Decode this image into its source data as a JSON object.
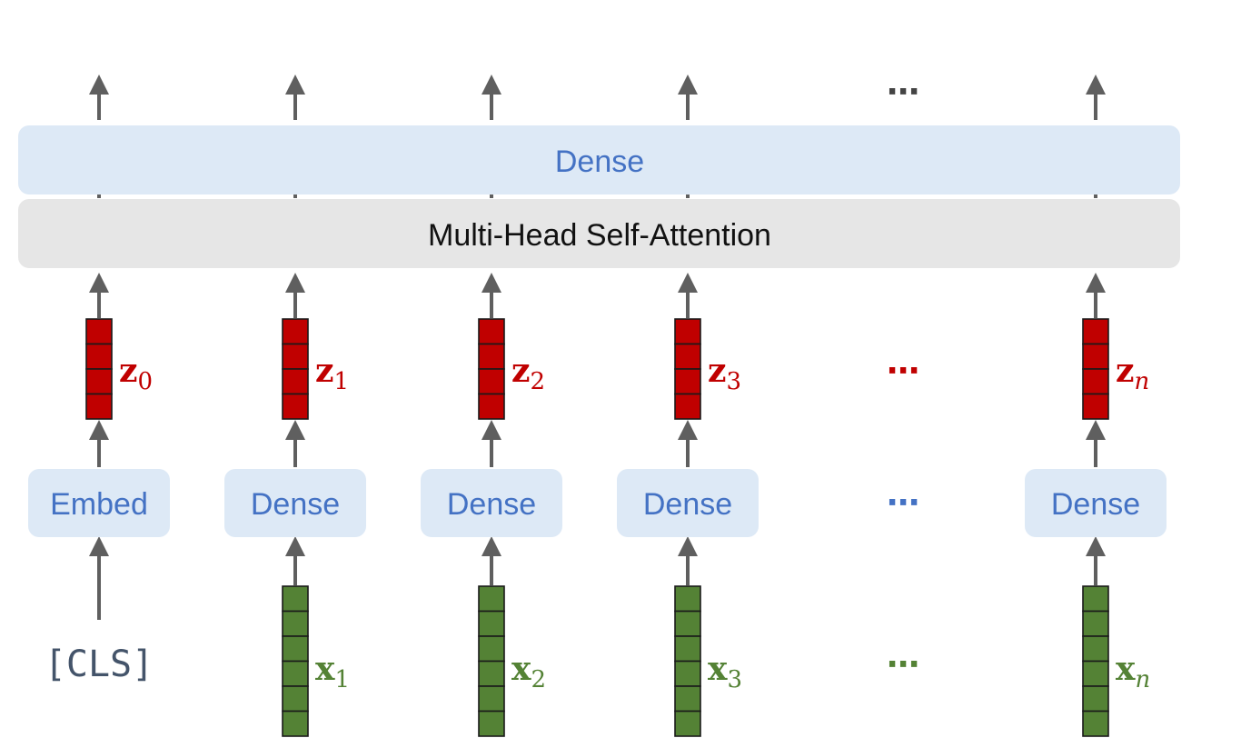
{
  "top_dense_label": "Dense",
  "attention_label": "Multi-Head Self-Attention",
  "cls_label": "[CLS]",
  "embed_label": "Embed",
  "ellipsis": "⋯",
  "columns": [
    {
      "id": "0",
      "block": "Embed",
      "z": "z",
      "z_sub": "0",
      "x": null,
      "x_sub": null
    },
    {
      "id": "1",
      "block": "Dense",
      "z": "z",
      "z_sub": "1",
      "x": "x",
      "x_sub": "1"
    },
    {
      "id": "2",
      "block": "Dense",
      "z": "z",
      "z_sub": "2",
      "x": "x",
      "x_sub": "2"
    },
    {
      "id": "3",
      "block": "Dense",
      "z": "z",
      "z_sub": "3",
      "x": "x",
      "x_sub": "3"
    },
    {
      "id": "n",
      "block": "Dense",
      "z": "z",
      "z_sub": "n",
      "x": "x",
      "x_sub": "n"
    }
  ],
  "colors": {
    "z_vector": "#c00000",
    "x_vector": "#548235",
    "dense_fill": "#dde9f6",
    "attention_fill": "#e6e6e6",
    "dense_text": "#4472c4"
  }
}
